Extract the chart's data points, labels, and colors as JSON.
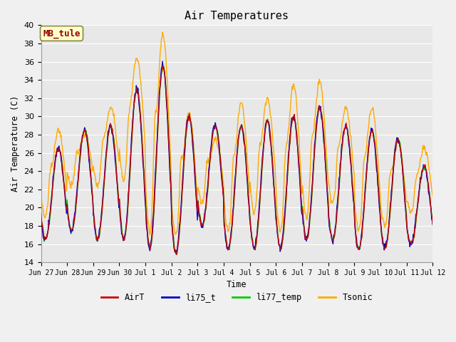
{
  "title": "Air Temperatures",
  "ylabel": "Air Temperature (C)",
  "xlabel": "Time",
  "ylim": [
    14,
    40
  ],
  "fig_facecolor": "#f0f0f0",
  "plot_bg_color": "#e8e8e8",
  "grid_color": "white",
  "series_colors": {
    "AirT": "#cc0000",
    "li75_t": "#0000cc",
    "li77_temp": "#00cc00",
    "Tsonic": "#ffaa00"
  },
  "annotation_text": "MB_tule",
  "annotation_color": "#990000",
  "annotation_bg": "#ffffcc",
  "tick_labels": [
    "Jun 27",
    "Jun 28",
    "Jun 29",
    "Jun 30",
    "Jul 1",
    "Jul 2",
    "Jul 3",
    "Jul 4",
    "Jul 5",
    "Jul 6",
    "Jul 7",
    "Jul 8",
    "Jul 9",
    "Jul 10",
    "Jul 11",
    "Jul 12"
  ],
  "day_peaks_tsonic": [
    28.5,
    28.0,
    31.0,
    36.5,
    39.0,
    30.5,
    27.5,
    31.5,
    32.0,
    33.3,
    33.8,
    31.0,
    31.0,
    27.5,
    26.5
  ],
  "day_peaks_main": [
    26.5,
    28.5,
    29.0,
    33.0,
    35.5,
    30.0,
    29.0,
    29.0,
    29.5,
    30.0,
    31.0,
    29.0,
    28.5,
    27.5,
    24.5
  ],
  "day_mins_main": [
    16.5,
    17.5,
    16.5,
    16.5,
    15.5,
    15.0,
    18.0,
    15.5,
    15.5,
    15.5,
    16.5,
    16.5,
    15.5,
    15.5,
    16.0
  ],
  "day_mins_tsonic": [
    19.0,
    22.5,
    22.5,
    23.0,
    17.5,
    17.0,
    20.5,
    17.5,
    19.5,
    17.5,
    19.0,
    20.5,
    17.5,
    18.0,
    19.5
  ]
}
